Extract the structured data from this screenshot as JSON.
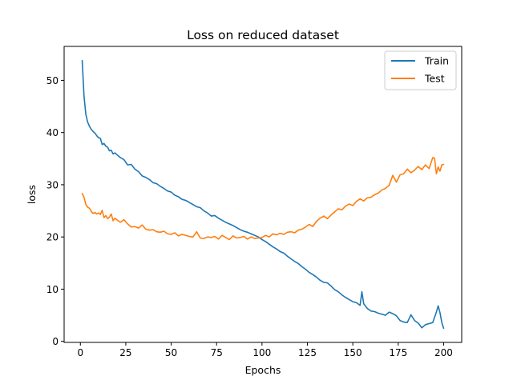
{
  "chart_data": {
    "type": "line",
    "title": "Loss on reduced dataset",
    "xlabel": "Epochs",
    "ylabel": "loss",
    "xlim": [
      -8.95,
      209.95
    ],
    "ylim": [
      -0.2,
      56.5
    ],
    "xticks": [
      0,
      25,
      50,
      75,
      100,
      125,
      150,
      175,
      200
    ],
    "yticks": [
      0,
      10,
      20,
      30,
      40,
      50
    ],
    "grid": false,
    "legend_position": "top-right",
    "series": [
      {
        "name": "Train",
        "color": "#1f77b4",
        "points": [
          [
            1,
            53.8
          ],
          [
            2,
            47.0
          ],
          [
            3,
            43.5
          ],
          [
            4,
            42.0
          ],
          [
            5,
            41.2
          ],
          [
            6,
            40.6
          ],
          [
            7,
            40.2
          ],
          [
            8,
            39.9
          ],
          [
            9,
            39.4
          ],
          [
            10,
            39.0
          ],
          [
            11,
            38.9
          ],
          [
            12,
            37.7
          ],
          [
            13,
            37.9
          ],
          [
            14,
            37.4
          ],
          [
            15,
            37.2
          ],
          [
            16,
            36.5
          ],
          [
            17,
            36.6
          ],
          [
            18,
            35.9
          ],
          [
            19,
            36.1
          ],
          [
            20,
            35.8
          ],
          [
            22,
            35.2
          ],
          [
            24,
            34.8
          ],
          [
            26,
            33.8
          ],
          [
            28,
            33.9
          ],
          [
            30,
            33.0
          ],
          [
            32,
            32.5
          ],
          [
            34,
            31.7
          ],
          [
            36,
            31.4
          ],
          [
            38,
            31.0
          ],
          [
            40,
            30.4
          ],
          [
            42,
            30.2
          ],
          [
            44,
            29.7
          ],
          [
            46,
            29.3
          ],
          [
            48,
            28.8
          ],
          [
            50,
            28.6
          ],
          [
            52,
            28.0
          ],
          [
            54,
            27.7
          ],
          [
            56,
            27.2
          ],
          [
            58,
            27.0
          ],
          [
            60,
            26.6
          ],
          [
            62,
            26.2
          ],
          [
            64,
            25.8
          ],
          [
            66,
            25.6
          ],
          [
            68,
            25.0
          ],
          [
            70,
            24.6
          ],
          [
            72,
            24.0
          ],
          [
            74,
            24.1
          ],
          [
            76,
            23.6
          ],
          [
            78,
            23.2
          ],
          [
            80,
            22.8
          ],
          [
            82,
            22.5
          ],
          [
            84,
            22.2
          ],
          [
            86,
            21.8
          ],
          [
            88,
            21.4
          ],
          [
            90,
            21.1
          ],
          [
            92,
            20.9
          ],
          [
            94,
            20.6
          ],
          [
            96,
            20.3
          ],
          [
            98,
            20.0
          ],
          [
            100,
            19.5
          ],
          [
            102,
            19.1
          ],
          [
            104,
            18.6
          ],
          [
            106,
            18.1
          ],
          [
            108,
            17.7
          ],
          [
            110,
            17.2
          ],
          [
            112,
            16.9
          ],
          [
            114,
            16.3
          ],
          [
            116,
            15.8
          ],
          [
            118,
            15.3
          ],
          [
            120,
            14.9
          ],
          [
            122,
            14.3
          ],
          [
            124,
            13.8
          ],
          [
            126,
            13.2
          ],
          [
            128,
            12.8
          ],
          [
            130,
            12.3
          ],
          [
            132,
            11.7
          ],
          [
            134,
            11.3
          ],
          [
            136,
            11.2
          ],
          [
            138,
            10.6
          ],
          [
            140,
            9.9
          ],
          [
            142,
            9.5
          ],
          [
            144,
            8.9
          ],
          [
            146,
            8.4
          ],
          [
            148,
            8.0
          ],
          [
            150,
            7.6
          ],
          [
            152,
            7.4
          ],
          [
            154,
            6.9
          ],
          [
            155,
            9.5
          ],
          [
            156,
            7.2
          ],
          [
            158,
            6.3
          ],
          [
            160,
            5.8
          ],
          [
            162,
            5.7
          ],
          [
            164,
            5.4
          ],
          [
            166,
            5.2
          ],
          [
            168,
            5.0
          ],
          [
            170,
            5.6
          ],
          [
            172,
            5.3
          ],
          [
            174,
            4.9
          ],
          [
            176,
            4.0
          ],
          [
            178,
            3.7
          ],
          [
            180,
            3.6
          ],
          [
            182,
            5.1
          ],
          [
            184,
            4.0
          ],
          [
            186,
            3.5
          ],
          [
            188,
            2.6
          ],
          [
            190,
            3.2
          ],
          [
            192,
            3.4
          ],
          [
            194,
            3.6
          ],
          [
            196,
            5.6
          ],
          [
            197,
            6.8
          ],
          [
            198,
            5.5
          ],
          [
            199,
            3.6
          ],
          [
            200,
            2.5
          ]
        ]
      },
      {
        "name": "Test",
        "color": "#ff7f0e",
        "points": [
          [
            1,
            28.3
          ],
          [
            2,
            27.6
          ],
          [
            3,
            26.2
          ],
          [
            4,
            25.7
          ],
          [
            5,
            25.5
          ],
          [
            6,
            24.9
          ],
          [
            7,
            24.5
          ],
          [
            8,
            24.7
          ],
          [
            9,
            24.4
          ],
          [
            10,
            24.6
          ],
          [
            11,
            24.3
          ],
          [
            12,
            25.1
          ],
          [
            13,
            23.7
          ],
          [
            14,
            24.1
          ],
          [
            15,
            23.5
          ],
          [
            16,
            23.8
          ],
          [
            17,
            24.4
          ],
          [
            18,
            23.1
          ],
          [
            19,
            23.6
          ],
          [
            20,
            23.3
          ],
          [
            22,
            22.8
          ],
          [
            24,
            23.3
          ],
          [
            26,
            22.5
          ],
          [
            28,
            21.9
          ],
          [
            30,
            22.0
          ],
          [
            32,
            21.7
          ],
          [
            34,
            22.3
          ],
          [
            36,
            21.5
          ],
          [
            38,
            21.3
          ],
          [
            40,
            21.4
          ],
          [
            42,
            21.0
          ],
          [
            44,
            20.9
          ],
          [
            46,
            21.1
          ],
          [
            48,
            20.6
          ],
          [
            50,
            20.5
          ],
          [
            52,
            20.8
          ],
          [
            54,
            20.2
          ],
          [
            56,
            20.5
          ],
          [
            58,
            20.3
          ],
          [
            60,
            20.1
          ],
          [
            62,
            20.0
          ],
          [
            64,
            21.0
          ],
          [
            66,
            19.8
          ],
          [
            68,
            19.7
          ],
          [
            70,
            20.0
          ],
          [
            72,
            19.9
          ],
          [
            74,
            20.1
          ],
          [
            76,
            19.6
          ],
          [
            78,
            20.3
          ],
          [
            80,
            19.9
          ],
          [
            82,
            19.5
          ],
          [
            84,
            20.2
          ],
          [
            86,
            19.8
          ],
          [
            88,
            19.9
          ],
          [
            90,
            20.1
          ],
          [
            92,
            19.6
          ],
          [
            94,
            20.0
          ],
          [
            96,
            19.7
          ],
          [
            98,
            19.8
          ],
          [
            100,
            19.9
          ],
          [
            102,
            20.3
          ],
          [
            104,
            20.0
          ],
          [
            106,
            20.6
          ],
          [
            108,
            20.4
          ],
          [
            110,
            20.7
          ],
          [
            112,
            20.5
          ],
          [
            114,
            20.9
          ],
          [
            116,
            21.0
          ],
          [
            118,
            20.8
          ],
          [
            120,
            21.3
          ],
          [
            122,
            21.5
          ],
          [
            124,
            21.9
          ],
          [
            126,
            22.4
          ],
          [
            128,
            22.0
          ],
          [
            130,
            23.0
          ],
          [
            132,
            23.6
          ],
          [
            134,
            24.0
          ],
          [
            136,
            23.5
          ],
          [
            138,
            24.2
          ],
          [
            140,
            24.8
          ],
          [
            142,
            25.4
          ],
          [
            144,
            25.2
          ],
          [
            146,
            25.9
          ],
          [
            148,
            26.3
          ],
          [
            150,
            26.0
          ],
          [
            152,
            26.8
          ],
          [
            154,
            27.3
          ],
          [
            156,
            26.9
          ],
          [
            158,
            27.5
          ],
          [
            160,
            27.6
          ],
          [
            162,
            28.1
          ],
          [
            164,
            28.4
          ],
          [
            166,
            29.0
          ],
          [
            168,
            29.3
          ],
          [
            170,
            29.9
          ],
          [
            172,
            31.8
          ],
          [
            174,
            30.5
          ],
          [
            176,
            31.9
          ],
          [
            178,
            32.1
          ],
          [
            180,
            33.0
          ],
          [
            182,
            32.3
          ],
          [
            184,
            32.8
          ],
          [
            186,
            33.5
          ],
          [
            188,
            32.9
          ],
          [
            190,
            33.8
          ],
          [
            192,
            33.1
          ],
          [
            194,
            35.2
          ],
          [
            195,
            35.1
          ],
          [
            196,
            32.1
          ],
          [
            197,
            33.4
          ],
          [
            198,
            32.6
          ],
          [
            199,
            33.8
          ],
          [
            200,
            33.9
          ]
        ]
      }
    ]
  }
}
